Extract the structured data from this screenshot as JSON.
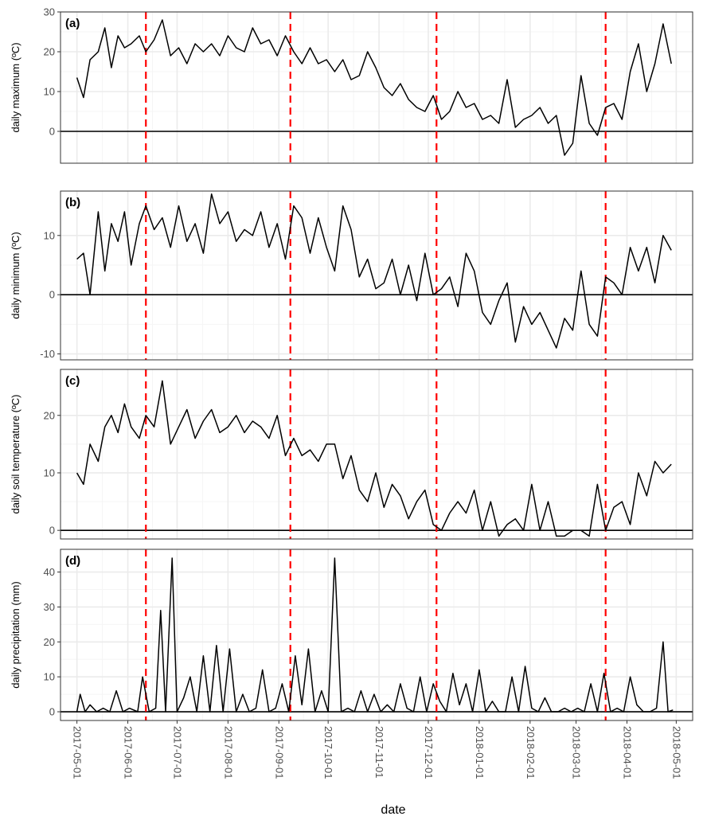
{
  "chart_data": [
    {
      "type": "line",
      "tag": "(a)",
      "ylabel": "daily maximum (ºC)",
      "ylim": [
        -8,
        30
      ],
      "yticks": [
        0,
        10,
        20,
        30
      ],
      "ytick_labels": [
        "0",
        "10",
        "20",
        "30"
      ],
      "hline": 0,
      "series": [
        {
          "x": [
            "2017-05-01",
            "2017-05-05",
            "2017-05-09",
            "2017-05-14",
            "2017-05-18",
            "2017-05-22",
            "2017-05-26",
            "2017-05-30",
            "2017-06-03",
            "2017-06-08",
            "2017-06-12",
            "2017-06-17",
            "2017-06-22",
            "2017-06-27",
            "2017-07-02",
            "2017-07-07",
            "2017-07-12",
            "2017-07-17",
            "2017-07-22",
            "2017-07-27",
            "2017-08-01",
            "2017-08-06",
            "2017-08-11",
            "2017-08-16",
            "2017-08-21",
            "2017-08-26",
            "2017-08-31",
            "2017-09-05",
            "2017-09-10",
            "2017-09-15",
            "2017-09-20",
            "2017-09-25",
            "2017-09-30",
            "2017-10-05",
            "2017-10-10",
            "2017-10-15",
            "2017-10-20",
            "2017-10-25",
            "2017-10-30",
            "2017-11-04",
            "2017-11-09",
            "2017-11-14",
            "2017-11-19",
            "2017-11-24",
            "2017-11-29",
            "2017-12-04",
            "2017-12-09",
            "2017-12-14",
            "2017-12-19",
            "2017-12-24",
            "2017-12-29",
            "2018-01-03",
            "2018-01-08",
            "2018-01-13",
            "2018-01-18",
            "2018-01-23",
            "2018-01-28",
            "2018-02-02",
            "2018-02-07",
            "2018-02-12",
            "2018-02-17",
            "2018-02-22",
            "2018-02-27",
            "2018-03-04",
            "2018-03-09",
            "2018-03-14",
            "2018-03-19",
            "2018-03-24",
            "2018-03-29",
            "2018-04-03",
            "2018-04-08",
            "2018-04-13",
            "2018-04-18",
            "2018-04-23",
            "2018-04-28"
          ],
          "y": [
            13.5,
            8.5,
            18,
            20,
            26,
            16,
            24,
            21,
            22,
            24,
            20,
            23,
            28,
            19,
            21,
            17,
            22,
            20,
            22,
            19,
            24,
            21,
            20,
            26,
            22,
            23,
            19,
            24,
            20,
            17,
            21,
            17,
            18,
            15,
            18,
            13,
            14,
            20,
            16,
            11,
            9,
            12,
            8,
            6,
            5,
            9,
            3,
            5,
            10,
            6,
            7,
            3,
            4,
            2,
            13,
            1,
            3,
            4,
            6,
            2,
            4,
            -6,
            -3,
            14,
            2,
            -1,
            6,
            7,
            3,
            15,
            22,
            10,
            17,
            27,
            17
          ]
        }
      ]
    },
    {
      "type": "line",
      "tag": "(b)",
      "ylabel": "daily minimum (ºC)",
      "ylim": [
        -11,
        17.5
      ],
      "yticks": [
        -10,
        0,
        10
      ],
      "ytick_labels": [
        "-10",
        "0",
        "10"
      ],
      "hline": 0,
      "series": [
        {
          "x": [
            "2017-05-01",
            "2017-05-05",
            "2017-05-09",
            "2017-05-14",
            "2017-05-18",
            "2017-05-22",
            "2017-05-26",
            "2017-05-30",
            "2017-06-03",
            "2017-06-08",
            "2017-06-12",
            "2017-06-17",
            "2017-06-22",
            "2017-06-27",
            "2017-07-02",
            "2017-07-07",
            "2017-07-12",
            "2017-07-17",
            "2017-07-22",
            "2017-07-27",
            "2017-08-01",
            "2017-08-06",
            "2017-08-11",
            "2017-08-16",
            "2017-08-21",
            "2017-08-26",
            "2017-08-31",
            "2017-09-05",
            "2017-09-10",
            "2017-09-15",
            "2017-09-20",
            "2017-09-25",
            "2017-09-30",
            "2017-10-05",
            "2017-10-10",
            "2017-10-15",
            "2017-10-20",
            "2017-10-25",
            "2017-10-30",
            "2017-11-04",
            "2017-11-09",
            "2017-11-14",
            "2017-11-19",
            "2017-11-24",
            "2017-11-29",
            "2017-12-04",
            "2017-12-09",
            "2017-12-14",
            "2017-12-19",
            "2017-12-24",
            "2017-12-29",
            "2018-01-03",
            "2018-01-08",
            "2018-01-13",
            "2018-01-18",
            "2018-01-23",
            "2018-01-28",
            "2018-02-02",
            "2018-02-07",
            "2018-02-12",
            "2018-02-17",
            "2018-02-22",
            "2018-02-27",
            "2018-03-04",
            "2018-03-09",
            "2018-03-14",
            "2018-03-19",
            "2018-03-24",
            "2018-03-29",
            "2018-04-03",
            "2018-04-08",
            "2018-04-13",
            "2018-04-18",
            "2018-04-23",
            "2018-04-28"
          ],
          "y": [
            6,
            7,
            0,
            14,
            4,
            12,
            9,
            14,
            5,
            12,
            15,
            11,
            13,
            8,
            15,
            9,
            12,
            7,
            17,
            12,
            14,
            9,
            11,
            10,
            14,
            8,
            12,
            6,
            15,
            13,
            7,
            13,
            8,
            4,
            15,
            11,
            3,
            6,
            1,
            2,
            6,
            0,
            5,
            -1,
            7,
            0,
            1,
            3,
            -2,
            7,
            4,
            -3,
            -5,
            -1,
            2,
            -8,
            -2,
            -5,
            -3,
            -6,
            -9,
            -4,
            -6,
            4,
            -5,
            -7,
            3,
            2,
            0,
            8,
            4,
            8,
            2,
            10,
            7.5
          ]
        }
      ]
    },
    {
      "type": "line",
      "tag": "(c)",
      "ylabel": "daily soil temperature (ºC)",
      "ylim": [
        -1.5,
        28
      ],
      "yticks": [
        0,
        10,
        20
      ],
      "ytick_labels": [
        "0",
        "10",
        "20"
      ],
      "hline": 0,
      "series": [
        {
          "x": [
            "2017-05-01",
            "2017-05-05",
            "2017-05-09",
            "2017-05-14",
            "2017-05-18",
            "2017-05-22",
            "2017-05-26",
            "2017-05-30",
            "2017-06-03",
            "2017-06-08",
            "2017-06-12",
            "2017-06-17",
            "2017-06-22",
            "2017-06-27",
            "2017-07-02",
            "2017-07-07",
            "2017-07-12",
            "2017-07-17",
            "2017-07-22",
            "2017-07-27",
            "2017-08-01",
            "2017-08-06",
            "2017-08-11",
            "2017-08-16",
            "2017-08-21",
            "2017-08-26",
            "2017-08-31",
            "2017-09-05",
            "2017-09-10",
            "2017-09-15",
            "2017-09-20",
            "2017-09-25",
            "2017-09-30",
            "2017-10-05",
            "2017-10-10",
            "2017-10-15",
            "2017-10-20",
            "2017-10-25",
            "2017-10-30",
            "2017-11-04",
            "2017-11-09",
            "2017-11-14",
            "2017-11-19",
            "2017-11-24",
            "2017-11-29",
            "2017-12-04",
            "2017-12-09",
            "2017-12-14",
            "2017-12-19",
            "2017-12-24",
            "2017-12-29",
            "2018-01-03",
            "2018-01-08",
            "2018-01-13",
            "2018-01-18",
            "2018-01-23",
            "2018-01-28",
            "2018-02-02",
            "2018-02-07",
            "2018-02-12",
            "2018-02-17",
            "2018-02-22",
            "2018-02-27",
            "2018-03-04",
            "2018-03-09",
            "2018-03-14",
            "2018-03-19",
            "2018-03-24",
            "2018-03-29",
            "2018-04-03",
            "2018-04-08",
            "2018-04-13",
            "2018-04-18",
            "2018-04-23",
            "2018-04-28"
          ],
          "y": [
            10,
            8,
            15,
            12,
            18,
            20,
            17,
            22,
            18,
            16,
            20,
            18,
            26,
            15,
            18,
            21,
            16,
            19,
            21,
            17,
            18,
            20,
            17,
            19,
            18,
            16,
            20,
            13,
            16,
            13,
            14,
            12,
            15,
            15,
            9,
            13,
            7,
            5,
            10,
            4,
            8,
            6,
            2,
            5,
            7,
            1,
            0,
            3,
            5,
            3,
            7,
            0,
            5,
            -1,
            1,
            2,
            0,
            8,
            0,
            5,
            -1,
            -1,
            0,
            0,
            -1,
            8,
            0,
            4,
            5,
            1,
            10,
            6,
            12,
            10,
            11.5
          ]
        }
      ]
    },
    {
      "type": "line",
      "tag": "(d)",
      "ylabel": "daily precipitation (mm)",
      "ylim": [
        -2.5,
        46.5
      ],
      "yticks": [
        0,
        10,
        20,
        30,
        40
      ],
      "ytick_labels": [
        "0",
        "10",
        "20",
        "30",
        "40"
      ],
      "hline": 0,
      "series": [
        {
          "x": [
            "2017-05-01",
            "2017-05-03",
            "2017-05-06",
            "2017-05-09",
            "2017-05-13",
            "2017-05-17",
            "2017-05-21",
            "2017-05-25",
            "2017-05-29",
            "2017-06-02",
            "2017-06-07",
            "2017-06-10",
            "2017-06-14",
            "2017-06-18",
            "2017-06-21",
            "2017-06-24",
            "2017-06-28",
            "2017-07-01",
            "2017-07-05",
            "2017-07-09",
            "2017-07-13",
            "2017-07-17",
            "2017-07-21",
            "2017-07-25",
            "2017-07-29",
            "2017-08-02",
            "2017-08-06",
            "2017-08-10",
            "2017-08-14",
            "2017-08-18",
            "2017-08-22",
            "2017-08-26",
            "2017-08-30",
            "2017-09-03",
            "2017-09-07",
            "2017-09-11",
            "2017-09-15",
            "2017-09-19",
            "2017-09-23",
            "2017-09-27",
            "2017-10-01",
            "2017-10-05",
            "2017-10-09",
            "2017-10-13",
            "2017-10-17",
            "2017-10-21",
            "2017-10-25",
            "2017-10-29",
            "2017-11-02",
            "2017-11-06",
            "2017-11-10",
            "2017-11-14",
            "2017-11-18",
            "2017-11-22",
            "2017-11-26",
            "2017-11-30",
            "2017-12-04",
            "2017-12-08",
            "2017-12-12",
            "2017-12-16",
            "2017-12-20",
            "2017-12-24",
            "2017-12-28",
            "2018-01-01",
            "2018-01-05",
            "2018-01-09",
            "2018-01-13",
            "2018-01-17",
            "2018-01-21",
            "2018-01-25",
            "2018-01-29",
            "2018-02-02",
            "2018-02-06",
            "2018-02-10",
            "2018-02-14",
            "2018-02-18",
            "2018-02-22",
            "2018-02-26",
            "2018-03-02",
            "2018-03-06",
            "2018-03-10",
            "2018-03-14",
            "2018-03-18",
            "2018-03-22",
            "2018-03-26",
            "2018-03-30",
            "2018-04-03",
            "2018-04-07",
            "2018-04-11",
            "2018-04-15",
            "2018-04-19",
            "2018-04-23",
            "2018-04-26",
            "2018-04-29"
          ],
          "y": [
            0,
            5,
            0,
            2,
            0,
            1,
            0,
            6,
            0,
            1,
            0,
            10,
            0,
            1,
            29,
            0,
            44,
            0,
            4,
            10,
            0,
            16,
            0,
            19,
            0,
            18,
            0,
            5,
            0,
            1,
            12,
            0,
            1,
            8,
            0,
            16,
            2,
            18,
            0,
            6,
            0,
            44,
            0,
            1,
            0,
            6,
            0,
            5,
            0,
            2,
            0,
            8,
            1,
            0,
            10,
            0,
            8,
            3,
            0,
            11,
            2,
            8,
            0,
            12,
            0,
            3,
            0,
            0,
            10,
            0,
            13,
            1,
            0,
            4,
            0,
            0,
            1,
            0,
            1,
            0,
            8,
            0,
            11,
            0,
            1,
            0,
            10,
            2,
            0,
            0,
            1,
            20,
            0,
            0.5
          ]
        }
      ]
    }
  ],
  "x_axis": {
    "label": "date",
    "ticks": [
      "2017-05-01",
      "2017-06-01",
      "2017-07-01",
      "2017-08-01",
      "2017-09-01",
      "2017-10-01",
      "2017-11-01",
      "2017-12-01",
      "2018-01-01",
      "2018-02-01",
      "2018-03-01",
      "2018-04-01",
      "2018-05-01"
    ],
    "range": [
      "2017-04-21",
      "2018-05-11"
    ]
  },
  "vlines": [
    "2017-06-12",
    "2017-09-08",
    "2017-12-06",
    "2018-03-19"
  ],
  "colors": {
    "line": "#000000",
    "vline": "#ff0000",
    "grid_major": "#ebebeb",
    "grid_minor": "#f5f5f5",
    "panel_border": "#333333"
  }
}
